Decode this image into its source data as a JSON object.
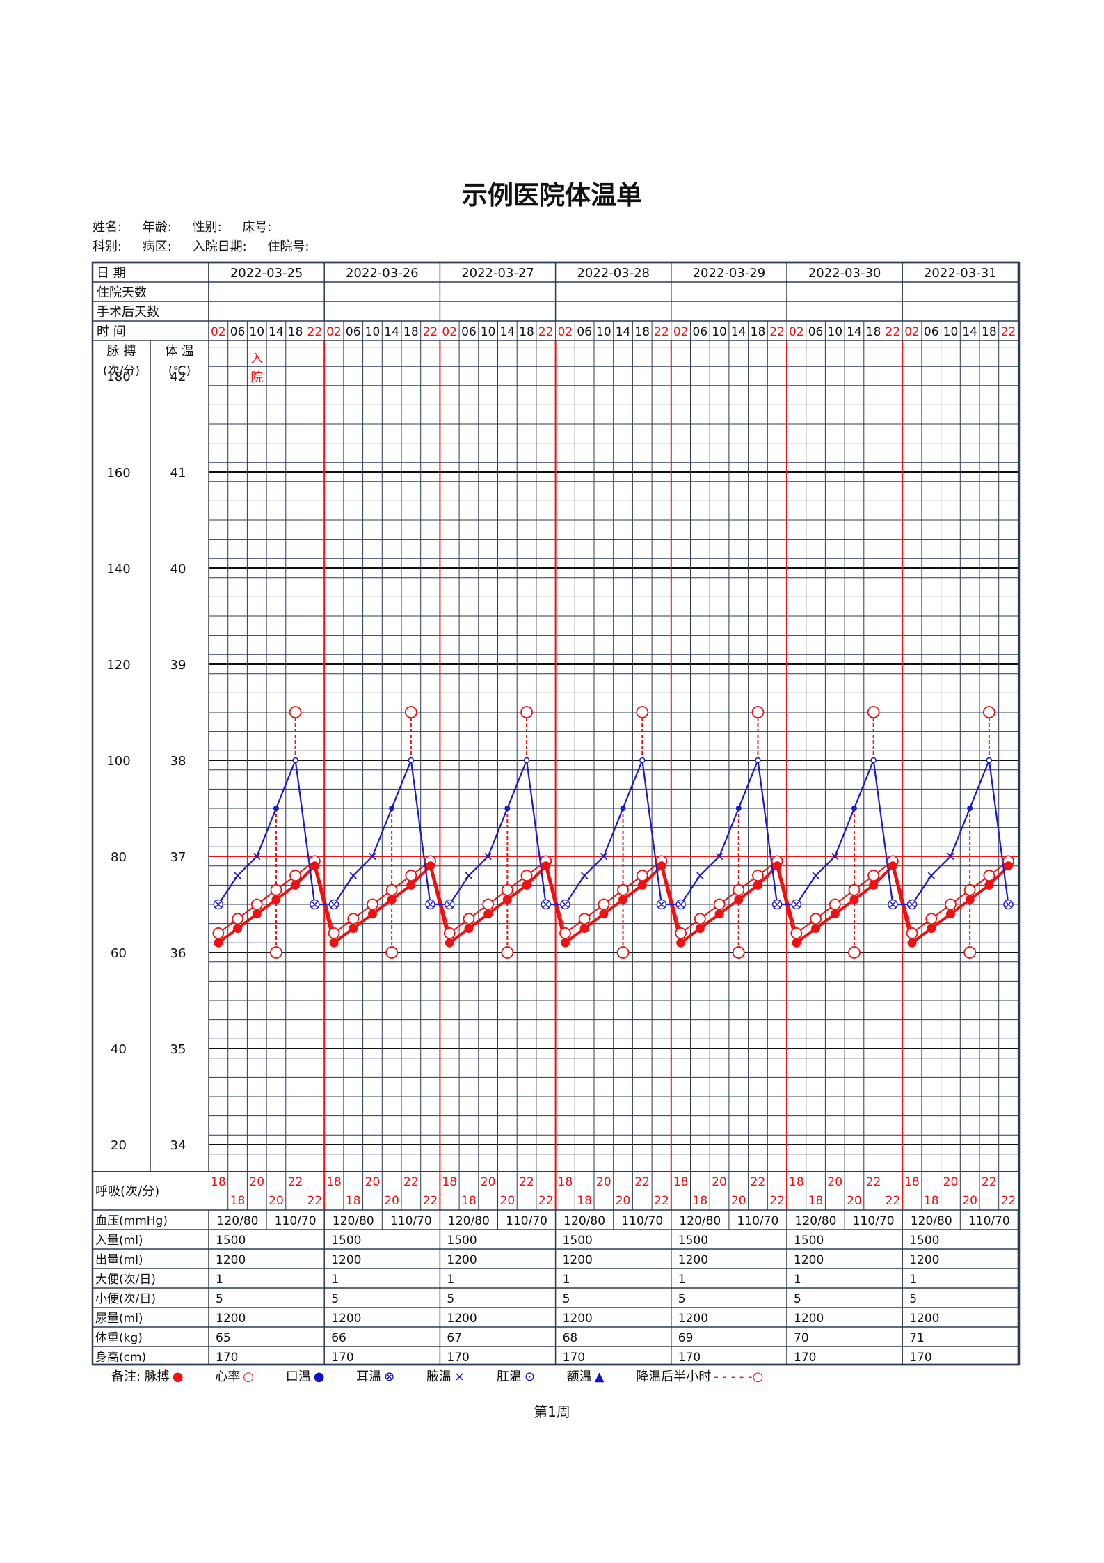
{
  "title": "示例医院体温单",
  "info_row1": [
    "姓名:",
    "年龄:",
    "性别:",
    "床号:"
  ],
  "info_row2": [
    "科别:",
    "病区:",
    "入院日期:",
    "住院号:"
  ],
  "labels": {
    "date": "日 期",
    "days_in": "住院天数",
    "days_post": "手术后天数",
    "time": "时 间",
    "pulse": "脉 搏",
    "temp": "体 温",
    "pulse_unit": "(次/分)",
    "temp_unit": "(℃)",
    "resp": "呼吸(次/分)",
    "bp": "血压(mmHg)",
    "intake": "入量(ml)",
    "output": "出量(ml)",
    "stool": "大便(次/日)",
    "urine_count": "小便(次/日)",
    "urine_vol": "尿量(ml)",
    "weight": "体重(kg)",
    "height": "身高(cm)"
  },
  "dates": [
    "2022-03-25",
    "2022-03-26",
    "2022-03-27",
    "2022-03-28",
    "2022-03-29",
    "2022-03-30",
    "2022-03-31"
  ],
  "times": [
    "02",
    "06",
    "10",
    "14",
    "18",
    "22"
  ],
  "admission_note": [
    "入",
    "院"
  ],
  "colors": {
    "grid": "#2b3a55",
    "red": "#ee1111",
    "blue": "#1a1acc"
  },
  "chart_data": {
    "type": "line",
    "title": "示例医院体温单",
    "pulse_axis": {
      "label": "脉 搏",
      "unit": "(次/分)",
      "ticks": [
        180,
        160,
        140,
        120,
        100,
        80,
        60,
        40,
        20
      ]
    },
    "temp_axis": {
      "label": "体 温",
      "unit": "(℃)",
      "ticks": [
        42,
        41,
        40,
        39,
        38,
        37,
        36,
        35,
        34
      ]
    },
    "reference_line": 37,
    "x": [
      "02",
      "06",
      "10",
      "14",
      "18",
      "22"
    ],
    "per_day": {
      "pulse": [
        62,
        65,
        68,
        71,
        74,
        78
      ],
      "heart_rate": [
        64,
        67,
        70,
        73,
        76,
        79
      ],
      "temperature_armpit": [
        36.5,
        36.8,
        37.0,
        37.5,
        38.0,
        36.5
      ],
      "cooling_after_half_hour": {
        "time": "14",
        "value": 36.0
      },
      "cooling_fever_marker": {
        "time": "18",
        "value": 38.5
      },
      "respiration": [
        18,
        18,
        20,
        20,
        22,
        22
      ]
    },
    "days": 7
  },
  "bp": [
    "120/80",
    "110/70"
  ],
  "daily": {
    "intake": [
      "1500",
      "1500",
      "1500",
      "1500",
      "1500",
      "1500",
      "1500"
    ],
    "output": [
      "1200",
      "1200",
      "1200",
      "1200",
      "1200",
      "1200",
      "1200"
    ],
    "stool": [
      "1",
      "1",
      "1",
      "1",
      "1",
      "1",
      "1"
    ],
    "urine_count": [
      "5",
      "5",
      "5",
      "5",
      "5",
      "5",
      "5"
    ],
    "urine_vol": [
      "1200",
      "1200",
      "1200",
      "1200",
      "1200",
      "1200",
      "1200"
    ],
    "weight": [
      "65",
      "66",
      "67",
      "68",
      "69",
      "70",
      "71"
    ],
    "height": [
      "170",
      "170",
      "170",
      "170",
      "170",
      "170",
      "170"
    ]
  },
  "legend": {
    "prefix": "备注:",
    "pulse": "脉搏",
    "heart": "心率",
    "oral": "口温",
    "ear": "耳温",
    "armpit": "腋温",
    "rectal": "肛温",
    "forehead": "额温",
    "cooling": "降温后半小时"
  },
  "footer": "第1周"
}
